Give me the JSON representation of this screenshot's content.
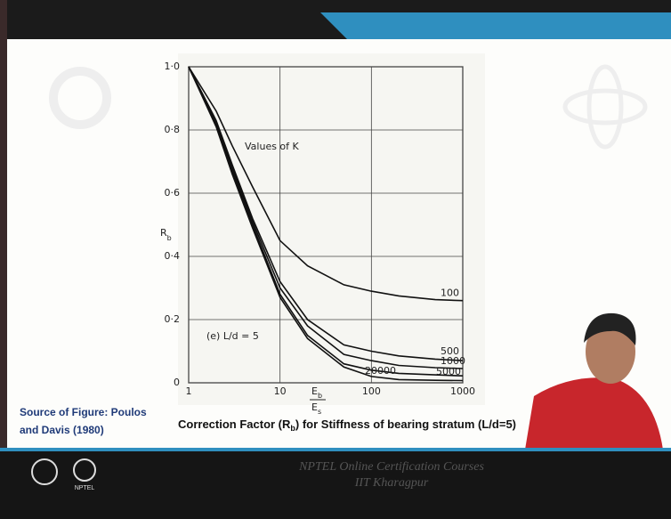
{
  "chart_data": {
    "type": "line",
    "y_label": "R",
    "y_label_sub": "b",
    "x_label": {
      "numerator": [
        "E",
        "b"
      ],
      "denominator": [
        "E",
        "s"
      ]
    },
    "annotations": [
      "Values of K",
      "(e) L/d = 5"
    ],
    "x": [
      1,
      2,
      3,
      5,
      10,
      20,
      50,
      100,
      200,
      500,
      1000
    ],
    "series": [
      {
        "name": "100",
        "color": "#111111",
        "values": [
          1.0,
          0.86,
          0.75,
          0.62,
          0.45,
          0.37,
          0.31,
          0.29,
          0.275,
          0.263,
          0.26
        ]
      },
      {
        "name": "500",
        "color": "#111111",
        "values": [
          1.0,
          0.83,
          0.69,
          0.52,
          0.32,
          0.2,
          0.12,
          0.1,
          0.085,
          0.075,
          0.07
        ]
      },
      {
        "name": "1000",
        "color": "#111111",
        "values": [
          1.0,
          0.82,
          0.68,
          0.51,
          0.3,
          0.18,
          0.09,
          0.07,
          0.055,
          0.048,
          0.045
        ]
      },
      {
        "name": "5000",
        "color": "#111111",
        "values": [
          1.0,
          0.82,
          0.67,
          0.5,
          0.28,
          0.15,
          0.06,
          0.04,
          0.03,
          0.025,
          0.022
        ]
      },
      {
        "name": "20000",
        "color": "#111111",
        "values": [
          1.0,
          0.81,
          0.66,
          0.49,
          0.27,
          0.14,
          0.05,
          0.02,
          0.01,
          0.008,
          0.007
        ]
      }
    ],
    "xlim": [
      1,
      1000
    ],
    "xscale": "log",
    "xticks": [
      1,
      10,
      100,
      1000
    ],
    "ylim": [
      0,
      1
    ],
    "yticks": [
      0,
      {
        "value": 0.2,
        "label": "0·2"
      },
      {
        "value": 0.4,
        "label": "0·4"
      },
      {
        "value": 0.6,
        "label": "0·6"
      },
      {
        "value": 0.8,
        "label": "0·8"
      },
      {
        "value": 1.0,
        "label": "1·0"
      }
    ],
    "grid": true
  },
  "source": [
    "Source of Figure: Poulos",
    "and Davis (1980)"
  ],
  "caption": {
    "before": "Correction Factor (R",
    "sub": "b",
    "after": ") for Stiffness of bearing stratum (L/d=5)"
  },
  "footer": {
    "line1": "NPTEL Online Certification Courses",
    "line2": "IIT Kharagpur",
    "logo": "NPTEL"
  }
}
